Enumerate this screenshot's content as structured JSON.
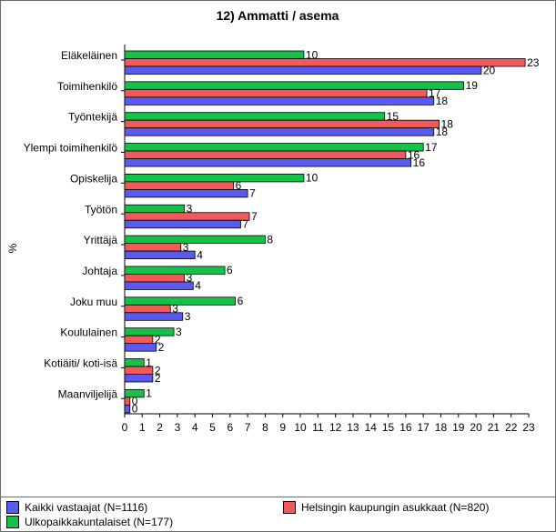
{
  "chart_data": {
    "type": "bar",
    "orientation": "horizontal",
    "title": "12) Ammatti / asema",
    "ylabel": "%",
    "xlabel": "",
    "xlim": [
      0,
      23
    ],
    "x_ticks": [
      "0",
      "1",
      "2",
      "3",
      "4",
      "5",
      "6",
      "7",
      "8",
      "9",
      "10",
      "11",
      "12",
      "13",
      "14",
      "15",
      "16",
      "17",
      "18",
      "19",
      "20",
      "21",
      "22",
      "23"
    ],
    "categories": [
      "Eläkeläinen",
      "Toimihenkilö",
      "Työntekijä",
      "Ylempi toimihenkilö",
      "Opiskelija",
      "Työtön",
      "Yrittäjä",
      "Johtaja",
      "Joku muu",
      "Koululainen",
      "Kotiäiti/ koti-isä",
      "Maanviljelijä"
    ],
    "series": [
      {
        "name": "Ulkopaikkakuntalaiset (N=177)",
        "color": "#16c14a",
        "values": [
          10.2,
          19.3,
          14.8,
          17.0,
          10.2,
          3.4,
          8.0,
          5.7,
          6.3,
          2.8,
          1.1,
          1.1
        ],
        "labels": [
          "10",
          "19",
          "15",
          "17",
          "10",
          "3",
          "8",
          "6",
          "6",
          "3",
          "1",
          "1"
        ]
      },
      {
        "name": "Helsingin kaupungin asukkaat (N=820)",
        "color": "#f05a5a",
        "values": [
          22.8,
          17.2,
          17.9,
          16.0,
          6.2,
          7.1,
          3.2,
          3.4,
          2.6,
          1.6,
          1.6,
          0.3
        ],
        "labels": [
          "23",
          "17",
          "18",
          "16",
          "6",
          "7",
          "3",
          "3",
          "3",
          "2",
          "2",
          "0"
        ]
      },
      {
        "name": "Kaikki vastaajat (N=1116)",
        "color": "#5a5aee",
        "values": [
          20.3,
          17.6,
          17.6,
          16.3,
          7.0,
          6.6,
          4.0,
          3.9,
          3.3,
          1.8,
          1.6,
          0.3
        ],
        "labels": [
          "20",
          "18",
          "18",
          "16",
          "7",
          "7",
          "4",
          "4",
          "3",
          "2",
          "2",
          "0"
        ]
      }
    ],
    "grid": false,
    "legend_position": "bottom"
  },
  "legend": {
    "items": [
      {
        "label": "Kaikki vastaajat (N=1116)",
        "color": "#5a5aee"
      },
      {
        "label": "Helsingin kaupungin asukkaat (N=820)",
        "color": "#f05a5a"
      },
      {
        "label": "Ulkopaikkakuntalaiset (N=177)",
        "color": "#16c14a"
      }
    ]
  }
}
